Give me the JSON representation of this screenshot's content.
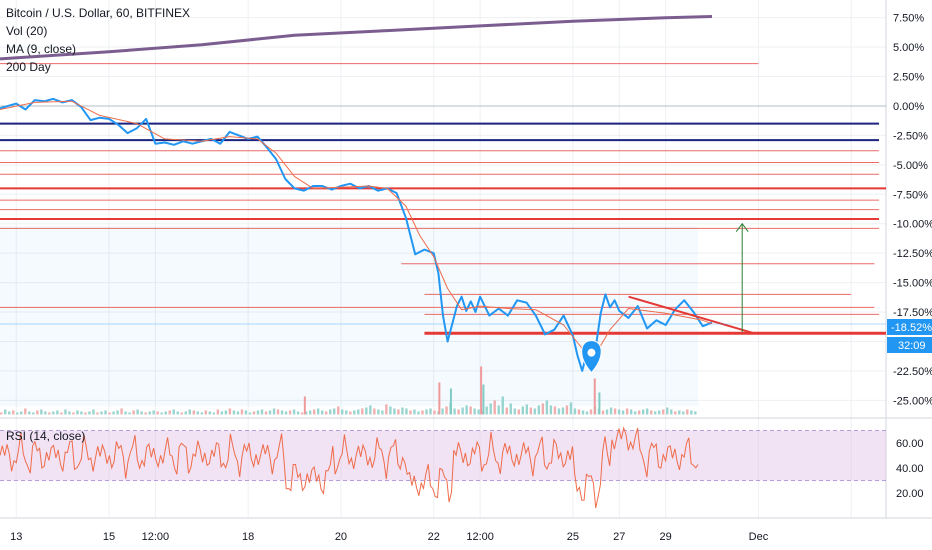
{
  "legend": {
    "symbol": "Bitcoin / U.S. Dollar, 60, BITFINEX",
    "vol": "Vol (20)",
    "ma": "MA (9, close)",
    "day200": "200 Day",
    "rsi": "RSI (14, close)"
  },
  "price_badge": "-18.52%",
  "timer_badge": "32:09",
  "colors": {
    "price": "#2196f3",
    "ma": "#ef6c4a",
    "hline_red": "#e53935",
    "hline_blue": "#1a237e",
    "purple": "#7b5e8f",
    "rsi": "#ef6c4a",
    "arrow": "#2e7d32"
  },
  "chart_data": [
    {
      "type": "line",
      "y_unit": "%",
      "ylim": [
        -26.5,
        9
      ],
      "y_ticks": [
        7.5,
        5,
        2.5,
        0,
        -2.5,
        -5,
        -7.5,
        -10,
        -12.5,
        -15,
        -17.5,
        -20,
        -22.5,
        -25
      ],
      "y_tick_labels": [
        "7.50%",
        "5.00%",
        "2.50%",
        "0.00%",
        "-2.50%",
        "-5.00%",
        "-7.50%",
        "-10.00%",
        "-12.50%",
        "-15.00%",
        "-17.50%",
        "-20.00%",
        "-22.50%",
        "-25.00%"
      ],
      "x_ticks": [
        0,
        2,
        3,
        5,
        7,
        9,
        10,
        12,
        13,
        14,
        16,
        18
      ],
      "x_tick_labels": [
        "13",
        "15",
        "12:00",
        "18",
        "20",
        "22",
        "12:00",
        "25",
        "27",
        "29",
        "Dec",
        ""
      ],
      "x_range_days": [
        -0.35,
        18.75
      ],
      "series": [
        {
          "key": "price",
          "x": [
            -0.35,
            0,
            0.2,
            0.4,
            0.6,
            0.8,
            1.0,
            1.2,
            1.4,
            1.6,
            1.8,
            2.0,
            2.2,
            2.4,
            2.6,
            2.8,
            3.0,
            3.2,
            3.4,
            3.6,
            3.8,
            4.0,
            4.2,
            4.4,
            4.6,
            4.8,
            5.0,
            5.2,
            5.4,
            5.6,
            5.8,
            6.0,
            6.2,
            6.4,
            6.6,
            6.8,
            7.0,
            7.2,
            7.4,
            7.6,
            7.8,
            8.0,
            8.2,
            8.4,
            8.6,
            8.8,
            9.0,
            9.1,
            9.2,
            9.3,
            9.4,
            9.5,
            9.6,
            9.7,
            9.8,
            9.9,
            10.0,
            10.2,
            10.4,
            10.6,
            10.8,
            11.0,
            11.2,
            11.4,
            11.6,
            11.8,
            12.0,
            12.1,
            12.2,
            12.3,
            12.4,
            12.5,
            12.6,
            12.7,
            12.8,
            12.9,
            13.0,
            13.2,
            13.4,
            13.6,
            13.8,
            14.0,
            14.2,
            14.4,
            14.6,
            14.8,
            15.0
          ],
          "y": [
            -0.2,
            0.2,
            -0.3,
            0.5,
            0.4,
            0.6,
            0.3,
            0.5,
            -0.1,
            -1.2,
            -1.0,
            -1.1,
            -1.6,
            -2.3,
            -1.9,
            -1.1,
            -3.2,
            -3.1,
            -3.3,
            -3.0,
            -3.2,
            -3.0,
            -2.8,
            -3.2,
            -2.2,
            -2.5,
            -2.8,
            -2.6,
            -3.5,
            -4.5,
            -6.2,
            -7.0,
            -7.2,
            -6.8,
            -6.8,
            -7.1,
            -6.8,
            -6.6,
            -7.0,
            -6.8,
            -7.2,
            -7.0,
            -7.4,
            -9.5,
            -12.6,
            -12.2,
            -12.5,
            -14.2,
            -17.8,
            -20.0,
            -18.5,
            -17.0,
            -16.2,
            -17.4,
            -16.6,
            -17.5,
            -16.2,
            -17.8,
            -17.2,
            -17.8,
            -16.5,
            -16.7,
            -17.8,
            -19.4,
            -19.0,
            -17.8,
            -19.5,
            -21.2,
            -22.5,
            -21.0,
            -22.2,
            -20.3,
            -17.6,
            -16.0,
            -17.1,
            -16.5,
            -17.4,
            -18.0,
            -17.0,
            -18.9,
            -18.2,
            -18.6,
            -17.3,
            -16.5,
            -17.5,
            -18.7,
            -18.4
          ]
        },
        {
          "key": "ma",
          "x": [
            -0.35,
            0.4,
            1.2,
            1.8,
            2.6,
            3.2,
            4.0,
            4.6,
            5.2,
            5.6,
            6.0,
            6.4,
            7.0,
            7.6,
            8.0,
            8.4,
            8.7,
            9.0,
            9.3,
            9.6,
            10.0,
            10.6,
            11.2,
            11.8,
            12.2,
            12.5,
            12.8,
            13.2,
            14.0,
            14.8,
            15.0
          ],
          "y": [
            -0.3,
            0.3,
            0.4,
            -0.8,
            -1.5,
            -2.8,
            -3.0,
            -2.6,
            -2.8,
            -4.0,
            -6.0,
            -7.0,
            -6.9,
            -6.8,
            -7.0,
            -8.5,
            -11.0,
            -12.8,
            -15.5,
            -17.3,
            -17.0,
            -17.2,
            -17.3,
            -18.6,
            -20.6,
            -21.0,
            -19.0,
            -17.2,
            -17.6,
            -18.2,
            -18.5
          ]
        },
        {
          "key": "purple",
          "x": [
            -0.35,
            2.0,
            4.0,
            6.0,
            8.0,
            10.0,
            12.0,
            14.0,
            15.0
          ],
          "y": [
            4.0,
            4.6,
            5.2,
            6.0,
            6.4,
            6.8,
            7.2,
            7.5,
            7.6
          ]
        }
      ],
      "horizontal_lines": [
        {
          "x0": -0.35,
          "x1": 16.0,
          "y": 3.6,
          "color": "red",
          "width": 1
        },
        {
          "x0": -0.35,
          "x1": 18.6,
          "y": -1.5,
          "color": "blue",
          "width": 2
        },
        {
          "x0": -0.35,
          "x1": 18.6,
          "y": -2.9,
          "color": "blue",
          "width": 2
        },
        {
          "x0": -0.35,
          "x1": 18.6,
          "y": -3.8,
          "color": "red",
          "width": 1
        },
        {
          "x0": -0.35,
          "x1": 18.6,
          "y": -4.8,
          "color": "red",
          "width": 1
        },
        {
          "x0": -0.35,
          "x1": 18.6,
          "y": -5.8,
          "color": "red",
          "width": 1
        },
        {
          "x0": -0.35,
          "x1": 18.75,
          "y": -7.0,
          "color": "red",
          "width": 2
        },
        {
          "x0": -0.35,
          "x1": 18.6,
          "y": -8.0,
          "color": "red",
          "width": 1
        },
        {
          "x0": -0.35,
          "x1": 18.6,
          "y": -8.8,
          "color": "red",
          "width": 1
        },
        {
          "x0": -0.35,
          "x1": 18.6,
          "y": -9.6,
          "color": "red",
          "width": 2
        },
        {
          "x0": -0.35,
          "x1": 18.6,
          "y": -10.4,
          "color": "red",
          "width": 1
        },
        {
          "x0": 8.3,
          "x1": 18.5,
          "y": -13.4,
          "color": "red",
          "width": 1
        },
        {
          "x0": 8.8,
          "x1": 18.0,
          "y": -16.0,
          "color": "red",
          "width": 1
        },
        {
          "x0": -0.35,
          "x1": 18.5,
          "y": -17.1,
          "color": "red",
          "width": 1
        },
        {
          "x0": 8.8,
          "x1": 18.6,
          "y": -17.7,
          "color": "red",
          "width": 1
        },
        {
          "x0": 8.8,
          "x1": 18.75,
          "y": -19.3,
          "color": "red",
          "width": 3
        }
      ],
      "trendline": {
        "x0": 13.2,
        "y0": -16.2,
        "x1": 15.9,
        "y1": -19.3
      },
      "arrow": {
        "x": 15.65,
        "y_from": -19.2,
        "y_to": -10.0
      },
      "marker": {
        "x": 12.4,
        "y": -21.8
      },
      "shaded_band": {
        "x0": -0.35,
        "x1": 14.7,
        "y_top": -10.2,
        "y_bottom": -25.5
      },
      "volume": [
        2,
        5,
        3,
        4,
        2,
        3,
        6,
        3,
        2,
        4,
        5,
        3,
        2,
        3,
        4,
        2,
        5,
        3,
        2,
        4,
        3,
        2,
        3,
        5,
        2,
        3,
        4,
        2,
        3,
        4,
        6,
        3,
        2,
        4,
        5,
        3,
        2,
        3,
        4,
        3,
        2,
        3,
        4,
        5,
        3,
        2,
        3,
        5,
        4,
        3,
        2,
        4,
        3,
        2,
        5,
        3,
        4,
        6,
        4,
        3,
        5,
        4,
        2,
        3,
        4,
        5,
        3,
        4,
        6,
        5,
        4,
        3,
        4,
        5,
        3,
        2,
        3,
        4,
        5,
        6,
        4,
        3,
        5,
        6,
        8,
        5,
        4,
        3,
        4,
        5,
        6,
        7,
        9,
        6,
        5,
        4,
        10,
        8,
        6,
        5,
        7,
        6,
        4,
        5,
        3,
        4,
        5,
        6,
        4,
        3,
        6,
        8,
        12,
        6,
        5,
        7,
        9,
        8,
        6,
        5,
        4,
        8,
        11,
        14,
        9,
        18,
        7,
        11,
        6,
        5,
        8,
        10,
        7,
        6,
        9,
        11,
        14,
        9,
        8,
        6,
        7,
        9,
        12,
        6,
        5,
        4,
        3,
        5,
        8,
        6,
        4,
        5,
        7,
        6,
        5,
        4,
        6,
        5,
        3,
        4,
        5,
        6,
        4,
        3,
        4,
        5,
        7,
        5,
        3,
        4,
        3,
        5,
        4,
        3
      ],
      "volume_spikes": [
        [
          9.1,
          32
        ],
        [
          9.35,
          26
        ],
        [
          10.0,
          48
        ],
        [
          10.05,
          30
        ],
        [
          12.45,
          36
        ],
        [
          12.55,
          22
        ],
        [
          6.2,
          18
        ]
      ],
      "rsi": {
        "ylim": [
          0,
          80
        ],
        "y_ticks": [
          60,
          40,
          20
        ],
        "y_tick_labels": [
          "60.00",
          "40.00",
          "20.00"
        ],
        "band": [
          30,
          70
        ]
      }
    }
  ]
}
